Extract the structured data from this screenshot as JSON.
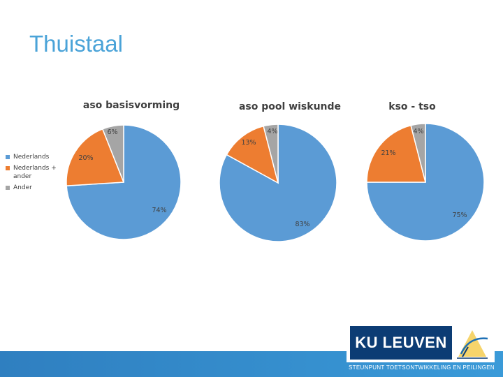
{
  "slide": {
    "title": "Thuistaal"
  },
  "legend": [
    {
      "label": "Nederlands",
      "color": "#5b9bd5"
    },
    {
      "label": "Nederlands + ander",
      "color": "#ed7d31"
    },
    {
      "label": "Ander",
      "color": "#a5a5a5"
    }
  ],
  "chart_data": [
    {
      "type": "pie",
      "title": "aso basisvorming",
      "categories": [
        "Nederlands",
        "Nederlands + ander",
        "Ander"
      ],
      "values": [
        74,
        20,
        6
      ],
      "labels": [
        "74%",
        "20%",
        "6%"
      ],
      "colors": [
        "#5b9bd5",
        "#ed7d31",
        "#a5a5a5"
      ]
    },
    {
      "type": "pie",
      "title": "aso pool wiskunde",
      "categories": [
        "Nederlands",
        "Nederlands + ander",
        "Ander"
      ],
      "values": [
        83,
        13,
        4
      ],
      "labels": [
        "83%",
        "13%",
        "4%"
      ],
      "colors": [
        "#5b9bd5",
        "#ed7d31",
        "#a5a5a5"
      ]
    },
    {
      "type": "pie",
      "title": "kso - tso",
      "categories": [
        "Nederlands",
        "Nederlands + ander",
        "Ander"
      ],
      "values": [
        75,
        21,
        4
      ],
      "labels": [
        "75%",
        "21%",
        "4%"
      ],
      "colors": [
        "#5b9bd5",
        "#ed7d31",
        "#a5a5a5"
      ]
    }
  ],
  "footer": {
    "logo_text": "KU LEUVEN",
    "caption": "STEUNPUNT TOETSONTWIKKELING EN PEILINGEN"
  }
}
